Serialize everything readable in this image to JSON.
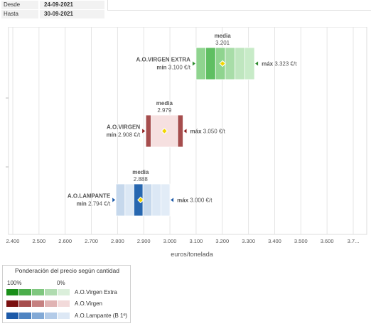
{
  "filters": {
    "desde_label": "Desde",
    "desde_value": "24-09-2021",
    "hasta_label": "Hasta",
    "hasta_value": "30-09-2021"
  },
  "chart_data": {
    "type": "range-box",
    "xlabel": "euros/tonelada",
    "xlim": [
      2400,
      3700
    ],
    "x_ticks": [
      "2.400",
      "2.500",
      "2.600",
      "2.700",
      "2.800",
      "2.900",
      "3.000",
      "3.100",
      "3.200",
      "3.300",
      "3.400",
      "3.500",
      "3.600",
      "3.7..."
    ],
    "grid": true,
    "series": [
      {
        "name": "A.O.VIRGEN EXTRA",
        "min": 3100,
        "max": 3323,
        "media": 3201,
        "min_label": "mín",
        "min_value_text": "3.100 €/t",
        "max_label": "máx",
        "max_value_text": "3.323 €/t",
        "media_label": "media",
        "media_value_text": "3.201",
        "colors": [
          "#8fd48f",
          "#5fbf62",
          "#8fd48f",
          "#a8dda8",
          "#bfe6bf",
          "#c8ebc8"
        ],
        "segment_weights": [
          1,
          1,
          1,
          1,
          1,
          1
        ],
        "arrow_color": "#2e8b2e"
      },
      {
        "name": "A.O.VIRGEN",
        "min": 2908,
        "max": 3050,
        "media": 2979,
        "min_label": "mín",
        "min_value_text": "2.908 €/t",
        "max_label": "máx",
        "max_value_text": "3.050 €/t",
        "media_label": "media",
        "media_value_text": "2.979",
        "colors": [
          "#a64d4d",
          "#f6e0e0",
          "#a64d4d"
        ],
        "segment_weights": [
          1,
          5,
          1
        ],
        "arrow_color": "#8b1a1a"
      },
      {
        "name": "A.O.LAMPANTE",
        "min": 2794,
        "max": 3000,
        "media": 2888,
        "min_label": "mín",
        "min_value_text": "2.794 €/t",
        "max_label": "máx",
        "max_value_text": "3.000 €/t",
        "media_label": "media",
        "media_value_text": "2.888",
        "colors": [
          "#c6d8ec",
          "#dce8f5",
          "#2767b0",
          "#c6d8ec",
          "#dce8f5",
          "#e2ecf7"
        ],
        "segment_weights": [
          1,
          1,
          1,
          1,
          1,
          1
        ],
        "arrow_color": "#1d5aa8"
      }
    ]
  },
  "legend": {
    "title": "Ponderación del precio según cantidad",
    "pct_high": "100%",
    "pct_low": "0%",
    "rows": [
      {
        "name": "A.O.Virgen Extra",
        "colors": [
          "#1a8f1a",
          "#4cae4c",
          "#7fc77f",
          "#b0dcb0",
          "#dbefdb"
        ]
      },
      {
        "name": "A.O.Virgen",
        "colors": [
          "#7a1010",
          "#a64d4d",
          "#c58080",
          "#e0b3b3",
          "#f2dada"
        ]
      },
      {
        "name": "A.O.Lampante (B 1º)",
        "colors": [
          "#1d5aa8",
          "#4f84c2",
          "#82a9d6",
          "#b3cbe8",
          "#dde8f5"
        ]
      }
    ]
  }
}
